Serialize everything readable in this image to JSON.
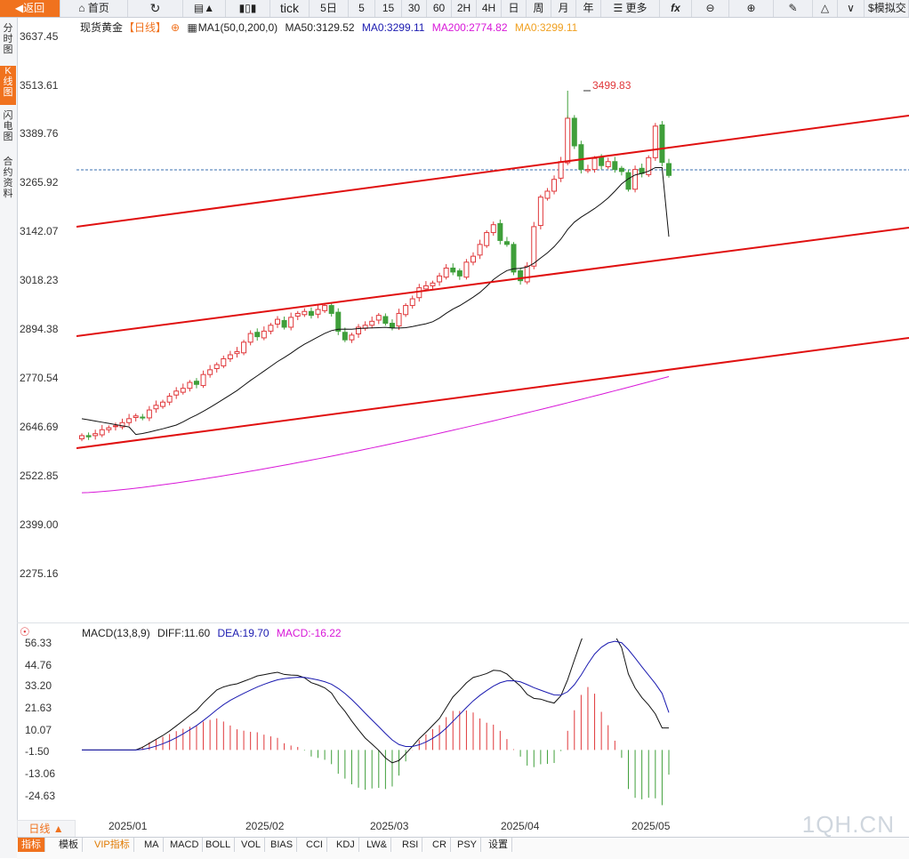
{
  "toolbar": {
    "back": "返回",
    "home": "首页",
    "tick": "tick",
    "day5": "5日",
    "m5": "5",
    "m15": "15",
    "m30": "30",
    "m60": "60",
    "h2": "2H",
    "h4": "4H",
    "day": "日",
    "week": "周",
    "month": "月",
    "year": "年",
    "more": "更多",
    "fx": "fx",
    "sim": "模拟交"
  },
  "sidebar": {
    "items": [
      "分时图",
      "K线图",
      "闪电图",
      "合约资料"
    ]
  },
  "legend": {
    "name": "现货黄金",
    "period": "【日线】",
    "ma_set": "MA1(50,0,200,0)",
    "ma50": "MA50:3129.52",
    "ma0a": "MA0:3299.11",
    "ma200": "MA200:2774.82",
    "ma0b": "MA0:3299.11"
  },
  "colors": {
    "up": "#e0373a",
    "down": "#3f9f3a",
    "ma50": "#111111",
    "ma200": "#d817d8",
    "channel": "#e01010",
    "macd_dea": "#1a1ab0",
    "accent": "#f0721e"
  },
  "price_axis": [
    "3637.45",
    "3513.61",
    "3389.76",
    "3265.92",
    "3142.07",
    "3018.23",
    "2894.38",
    "2770.54",
    "2646.69",
    "2522.85",
    "2399.00",
    "2275.16"
  ],
  "high_label": "3499.83",
  "macd_legend": {
    "name": "MACD(13,8,9)",
    "diff": "DIFF:11.60",
    "dea": "DEA:19.70",
    "macd": "MACD:-16.22"
  },
  "macd_axis": [
    "56.33",
    "44.76",
    "33.20",
    "21.63",
    "10.07",
    "-1.50",
    "-13.06",
    "-24.63"
  ],
  "x_axis": [
    "2025/01",
    "2025/02",
    "2025/03",
    "2025/04",
    "2025/05"
  ],
  "period_selector": "日线 ▲",
  "bottom_tabs": [
    "指标",
    "模板",
    "VIP指标",
    "MA",
    "MACD",
    "BOLL",
    "VOL",
    "BIAS",
    "CCI",
    "KDJ",
    "LW&",
    "RSI",
    "CR",
    "PSY",
    "设置"
  ],
  "watermark": "1QH.CN",
  "chart_data": {
    "type": "candlestick",
    "title": "现货黄金",
    "ylim": [
      2275.16,
      3637.45
    ],
    "closes": [
      2625,
      2622,
      2630,
      2640,
      2645,
      2650,
      2658,
      2668,
      2675,
      2670,
      2690,
      2702,
      2710,
      2725,
      2738,
      2745,
      2760,
      2755,
      2780,
      2792,
      2805,
      2820,
      2830,
      2838,
      2862,
      2884,
      2876,
      2890,
      2905,
      2920,
      2900,
      2925,
      2935,
      2940,
      2930,
      2945,
      2955,
      2935,
      2890,
      2868,
      2880,
      2900,
      2905,
      2915,
      2930,
      2910,
      2900,
      2935,
      2955,
      2972,
      3000,
      3005,
      3012,
      3030,
      3050,
      3040,
      3030,
      3065,
      3080,
      3110,
      3140,
      3160,
      3120,
      3110,
      3040,
      3018,
      3055,
      3155,
      3230,
      3245,
      3275,
      3320,
      3430,
      3360,
      3300,
      3300,
      3328,
      3310,
      3320,
      3300,
      3295,
      3250,
      3300,
      3290,
      3330,
      3410,
      3318,
      3285
    ],
    "ma50_last": 3129.52,
    "ma200_last": 2774.82,
    "high_mark": 3499.83,
    "macd": {
      "diff_last": 11.6,
      "dea_last": 19.7,
      "macd_last": -16.22,
      "ylim": [
        -24.63,
        56.33
      ]
    }
  }
}
